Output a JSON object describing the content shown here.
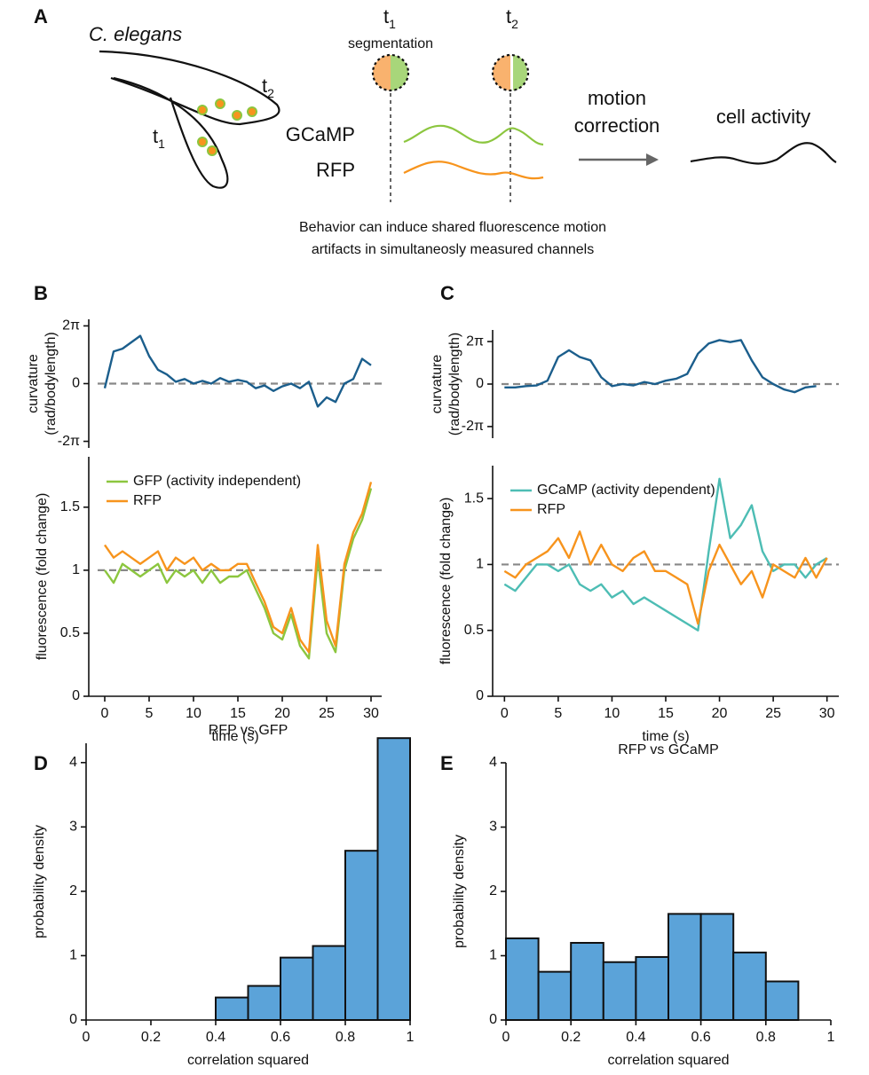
{
  "diagram": {
    "panel": "A",
    "organism": "C. elegans",
    "worm_t1": {
      "base": "t",
      "sub": "1"
    },
    "worm_t2": {
      "base": "t",
      "sub": "2"
    },
    "top_t1": {
      "base": "t",
      "sub": "1"
    },
    "top_t2": {
      "base": "t",
      "sub": "2"
    },
    "segmentation": "segmentation",
    "gcamp": "GCaMP",
    "rfp": "RFP",
    "motion_correction": [
      "motion",
      "correction"
    ],
    "cell_activity": "cell activity",
    "caption": [
      "Behavior can induce shared fluorescence motion",
      "artifacts in simultaneosly measured channels"
    ]
  },
  "chart_data": [
    {
      "type": "line",
      "panel": "B",
      "ylabel": [
        "curvature",
        "(rad/bodylength)"
      ],
      "x": [
        0,
        1,
        2,
        3,
        4,
        5,
        6,
        7,
        8,
        9,
        10,
        11,
        12,
        13,
        14,
        15,
        16,
        17,
        18,
        19,
        20,
        21,
        22,
        23,
        24,
        25,
        26,
        27,
        28,
        29,
        30
      ],
      "values": [
        -0.5,
        3.5,
        3.8,
        4.5,
        5.2,
        3.0,
        1.5,
        1.0,
        0.2,
        0.5,
        0,
        0.3,
        0,
        0.6,
        0.2,
        0.4,
        0.2,
        -0.5,
        -0.2,
        -0.8,
        -0.3,
        0,
        -0.5,
        0.2,
        -2.5,
        -1.5,
        -2.0,
        0,
        0.5,
        2.7,
        2.0
      ],
      "color": "#1b5e8c",
      "xlim": [
        -1.8,
        31.2
      ],
      "ylim": [
        -7,
        7
      ],
      "yticks": [
        {
          "value": 6.2832,
          "label": "2π"
        },
        0,
        {
          "value": -6.2832,
          "label": "-2π"
        }
      ],
      "reference_line": 0
    },
    {
      "type": "line",
      "ylabel": [
        "fluorescence (fold change)"
      ],
      "xlabel": "time (s)",
      "x": [
        0,
        1,
        2,
        3,
        4,
        5,
        6,
        7,
        8,
        9,
        10,
        11,
        12,
        13,
        14,
        15,
        16,
        17,
        18,
        19,
        20,
        21,
        22,
        23,
        24,
        25,
        26,
        27,
        28,
        29,
        30
      ],
      "series": [
        {
          "name": "GFP (activity independent)",
          "color": "#8cc63f",
          "values": [
            1.0,
            0.9,
            1.05,
            1.0,
            0.95,
            1.0,
            1.05,
            0.9,
            1.0,
            0.95,
            1.0,
            0.9,
            1.0,
            0.9,
            0.95,
            0.95,
            1.0,
            0.85,
            0.7,
            0.5,
            0.45,
            0.65,
            0.4,
            0.3,
            1.1,
            0.5,
            0.35,
            1.0,
            1.25,
            1.4,
            1.65
          ]
        },
        {
          "name": "RFP",
          "color": "#f7941d",
          "values": [
            1.2,
            1.1,
            1.15,
            1.1,
            1.05,
            1.1,
            1.15,
            1.0,
            1.1,
            1.05,
            1.1,
            1.0,
            1.05,
            1.0,
            1.0,
            1.05,
            1.05,
            0.9,
            0.75,
            0.55,
            0.5,
            0.7,
            0.45,
            0.35,
            1.2,
            0.6,
            0.4,
            1.05,
            1.3,
            1.45,
            1.7
          ]
        }
      ],
      "xlim": [
        -1.8,
        31.2
      ],
      "ylim": [
        0,
        1.9
      ],
      "xticks": [
        0,
        5,
        10,
        15,
        20,
        25,
        30
      ],
      "yticks": [
        0,
        0.5,
        1,
        1.5
      ],
      "reference_line": 1,
      "legend": "upper left"
    },
    {
      "type": "line",
      "panel": "C",
      "ylabel": [
        "curvature",
        "(rad/bodylength)"
      ],
      "x": [
        0,
        1,
        2,
        3,
        4,
        5,
        6,
        7,
        8,
        9,
        10,
        11,
        12,
        13,
        14,
        15,
        16,
        17,
        18,
        19,
        20,
        21,
        22,
        23,
        24,
        25,
        26,
        27,
        28,
        29,
        30
      ],
      "values": [
        -0.5,
        -0.5,
        -0.3,
        -0.2,
        0.5,
        4.0,
        5.0,
        4.0,
        3.5,
        1.0,
        -0.3,
        0,
        -0.2,
        0.3,
        0,
        0.5,
        0.8,
        1.5,
        4.5,
        6.0,
        6.5,
        6.2,
        6.5,
        3.5,
        1.0,
        0,
        -0.8,
        -1.2,
        -0.5,
        -0.3,
        null
      ],
      "color": "#1b5e8c",
      "xlim": [
        -1.1,
        31.1
      ],
      "ylim": [
        -8,
        8
      ],
      "yticks": [
        {
          "value": 6.2832,
          "label": "2π"
        },
        0,
        {
          "value": -6.2832,
          "label": "-2π"
        }
      ],
      "reference_line": 0
    },
    {
      "type": "line",
      "ylabel": [
        "fluorescence (fold change)"
      ],
      "xlabel": "time (s)",
      "x": [
        0,
        1,
        2,
        3,
        4,
        5,
        6,
        7,
        8,
        9,
        10,
        11,
        12,
        13,
        14,
        15,
        16,
        17,
        18,
        19,
        20,
        21,
        22,
        23,
        24,
        25,
        26,
        27,
        28,
        29,
        30
      ],
      "series": [
        {
          "name": "GCaMP (activity dependent)",
          "color": "#4dbdb4",
          "values": [
            0.85,
            0.8,
            0.9,
            1.0,
            1.0,
            0.95,
            1.0,
            0.85,
            0.8,
            0.85,
            0.75,
            0.8,
            0.7,
            0.75,
            0.7,
            0.65,
            0.6,
            0.55,
            0.5,
            1.1,
            1.65,
            1.2,
            1.3,
            1.45,
            1.1,
            0.95,
            1.0,
            1.0,
            0.9,
            1.0,
            1.05
          ]
        },
        {
          "name": "RFP",
          "color": "#f7941d",
          "values": [
            0.95,
            0.9,
            1.0,
            1.05,
            1.1,
            1.2,
            1.05,
            1.25,
            1.0,
            1.15,
            1.0,
            0.95,
            1.05,
            1.1,
            0.95,
            0.95,
            0.9,
            0.85,
            0.55,
            0.95,
            1.15,
            1.0,
            0.85,
            0.95,
            0.75,
            1.0,
            0.95,
            0.9,
            1.05,
            0.9,
            1.05
          ]
        }
      ],
      "xlim": [
        -1.1,
        31.1
      ],
      "ylim": [
        0,
        1.75
      ],
      "xticks": [
        0,
        5,
        10,
        15,
        20,
        25,
        30
      ],
      "yticks": [
        0,
        0.5,
        1,
        1.5
      ],
      "reference_line": 1,
      "legend": "upper left"
    },
    {
      "type": "histogram",
      "panel": "D",
      "title": "RFP vs GFP",
      "xlabel": "correlation squared",
      "ylabel": [
        "probability density"
      ],
      "bins": [
        0,
        0.1,
        0.2,
        0.3,
        0.4,
        0.5,
        0.6,
        0.7,
        0.8,
        0.9,
        1
      ],
      "values": [
        0,
        0,
        0,
        0,
        0.35,
        0.53,
        0.97,
        1.15,
        2.63,
        4.38
      ],
      "color": "#5ba3d9",
      "xlim": [
        0,
        1
      ],
      "ylim": [
        0,
        4.3
      ],
      "xticks": [
        0,
        0.2,
        0.4,
        0.6,
        0.8,
        1
      ],
      "yticks": [
        0,
        1,
        2,
        3,
        4
      ]
    },
    {
      "type": "histogram",
      "panel": "E",
      "title": "RFP vs GCaMP",
      "xlabel": "correlation squared",
      "ylabel": [
        "probability density"
      ],
      "bins": [
        0,
        0.1,
        0.2,
        0.3,
        0.4,
        0.5,
        0.6,
        0.7,
        0.8,
        0.9,
        1
      ],
      "values": [
        1.27,
        0.75,
        1.2,
        0.9,
        0.98,
        1.65,
        1.65,
        1.05,
        0.6,
        0
      ],
      "color": "#5ba3d9",
      "xlim": [
        0,
        1
      ],
      "ylim": [
        0,
        4
      ],
      "xticks": [
        0,
        0.2,
        0.4,
        0.6,
        0.8,
        1
      ],
      "yticks": [
        0,
        1,
        2,
        3,
        4
      ]
    }
  ]
}
